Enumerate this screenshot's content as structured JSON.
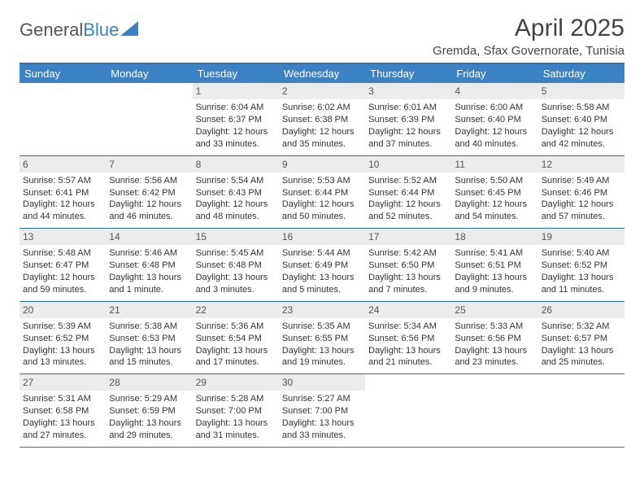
{
  "logo": {
    "text_general": "General",
    "text_blue": "Blue"
  },
  "title": "April 2025",
  "location": "Gremda, Sfax Governorate, Tunisia",
  "colors": {
    "header_bg": "#3b82c4",
    "header_border": "#2a6fb0",
    "daynum_bg": "#ececec",
    "text": "#333333",
    "page_bg": "#ffffff"
  },
  "day_names": [
    "Sunday",
    "Monday",
    "Tuesday",
    "Wednesday",
    "Thursday",
    "Friday",
    "Saturday"
  ],
  "weeks": [
    [
      null,
      null,
      {
        "n": "1",
        "sunrise": "6:04 AM",
        "sunset": "6:37 PM",
        "daylight": "12 hours and 33 minutes."
      },
      {
        "n": "2",
        "sunrise": "6:02 AM",
        "sunset": "6:38 PM",
        "daylight": "12 hours and 35 minutes."
      },
      {
        "n": "3",
        "sunrise": "6:01 AM",
        "sunset": "6:39 PM",
        "daylight": "12 hours and 37 minutes."
      },
      {
        "n": "4",
        "sunrise": "6:00 AM",
        "sunset": "6:40 PM",
        "daylight": "12 hours and 40 minutes."
      },
      {
        "n": "5",
        "sunrise": "5:58 AM",
        "sunset": "6:40 PM",
        "daylight": "12 hours and 42 minutes."
      }
    ],
    [
      {
        "n": "6",
        "sunrise": "5:57 AM",
        "sunset": "6:41 PM",
        "daylight": "12 hours and 44 minutes."
      },
      {
        "n": "7",
        "sunrise": "5:56 AM",
        "sunset": "6:42 PM",
        "daylight": "12 hours and 46 minutes."
      },
      {
        "n": "8",
        "sunrise": "5:54 AM",
        "sunset": "6:43 PM",
        "daylight": "12 hours and 48 minutes."
      },
      {
        "n": "9",
        "sunrise": "5:53 AM",
        "sunset": "6:44 PM",
        "daylight": "12 hours and 50 minutes."
      },
      {
        "n": "10",
        "sunrise": "5:52 AM",
        "sunset": "6:44 PM",
        "daylight": "12 hours and 52 minutes."
      },
      {
        "n": "11",
        "sunrise": "5:50 AM",
        "sunset": "6:45 PM",
        "daylight": "12 hours and 54 minutes."
      },
      {
        "n": "12",
        "sunrise": "5:49 AM",
        "sunset": "6:46 PM",
        "daylight": "12 hours and 57 minutes."
      }
    ],
    [
      {
        "n": "13",
        "sunrise": "5:48 AM",
        "sunset": "6:47 PM",
        "daylight": "12 hours and 59 minutes."
      },
      {
        "n": "14",
        "sunrise": "5:46 AM",
        "sunset": "6:48 PM",
        "daylight": "13 hours and 1 minute."
      },
      {
        "n": "15",
        "sunrise": "5:45 AM",
        "sunset": "6:48 PM",
        "daylight": "13 hours and 3 minutes."
      },
      {
        "n": "16",
        "sunrise": "5:44 AM",
        "sunset": "6:49 PM",
        "daylight": "13 hours and 5 minutes."
      },
      {
        "n": "17",
        "sunrise": "5:42 AM",
        "sunset": "6:50 PM",
        "daylight": "13 hours and 7 minutes."
      },
      {
        "n": "18",
        "sunrise": "5:41 AM",
        "sunset": "6:51 PM",
        "daylight": "13 hours and 9 minutes."
      },
      {
        "n": "19",
        "sunrise": "5:40 AM",
        "sunset": "6:52 PM",
        "daylight": "13 hours and 11 minutes."
      }
    ],
    [
      {
        "n": "20",
        "sunrise": "5:39 AM",
        "sunset": "6:52 PM",
        "daylight": "13 hours and 13 minutes."
      },
      {
        "n": "21",
        "sunrise": "5:38 AM",
        "sunset": "6:53 PM",
        "daylight": "13 hours and 15 minutes."
      },
      {
        "n": "22",
        "sunrise": "5:36 AM",
        "sunset": "6:54 PM",
        "daylight": "13 hours and 17 minutes."
      },
      {
        "n": "23",
        "sunrise": "5:35 AM",
        "sunset": "6:55 PM",
        "daylight": "13 hours and 19 minutes."
      },
      {
        "n": "24",
        "sunrise": "5:34 AM",
        "sunset": "6:56 PM",
        "daylight": "13 hours and 21 minutes."
      },
      {
        "n": "25",
        "sunrise": "5:33 AM",
        "sunset": "6:56 PM",
        "daylight": "13 hours and 23 minutes."
      },
      {
        "n": "26",
        "sunrise": "5:32 AM",
        "sunset": "6:57 PM",
        "daylight": "13 hours and 25 minutes."
      }
    ],
    [
      {
        "n": "27",
        "sunrise": "5:31 AM",
        "sunset": "6:58 PM",
        "daylight": "13 hours and 27 minutes."
      },
      {
        "n": "28",
        "sunrise": "5:29 AM",
        "sunset": "6:59 PM",
        "daylight": "13 hours and 29 minutes."
      },
      {
        "n": "29",
        "sunrise": "5:28 AM",
        "sunset": "7:00 PM",
        "daylight": "13 hours and 31 minutes."
      },
      {
        "n": "30",
        "sunrise": "5:27 AM",
        "sunset": "7:00 PM",
        "daylight": "13 hours and 33 minutes."
      },
      null,
      null,
      null
    ]
  ],
  "labels": {
    "sunrise": "Sunrise:",
    "sunset": "Sunset:",
    "daylight": "Daylight:"
  }
}
